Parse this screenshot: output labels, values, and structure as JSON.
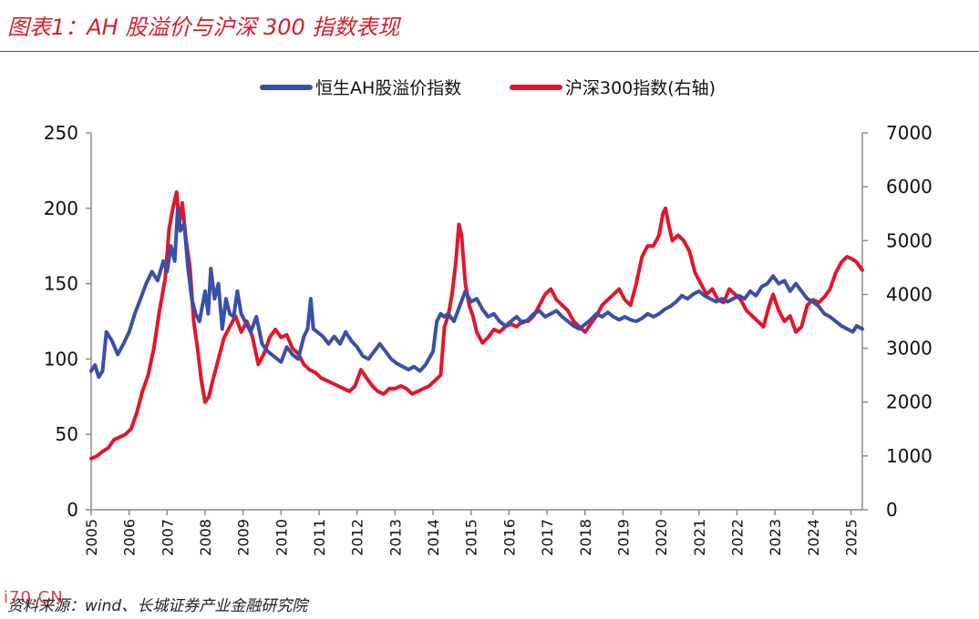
{
  "header": {
    "title": "图表1：AH 股溢价与沪深 300 指数表现"
  },
  "footer": {
    "source": "资料来源：wind、长城证券产业金融研究院",
    "watermark": "i70.CN"
  },
  "colors": {
    "accent": "#d21f2b",
    "series_ah": "#3a4fa8",
    "series_hs300": "#e3152a",
    "axis": "#8c8c8c"
  },
  "chart_data": {
    "type": "line",
    "title": "AH 股溢价与沪深 300 指数表现",
    "x_range": [
      2005.0,
      2025.3
    ],
    "x_ticks": [
      "2005",
      "2006",
      "2007",
      "2008",
      "2009",
      "2010",
      "2011",
      "2012",
      "2013",
      "2014",
      "2015",
      "2016",
      "2017",
      "2018",
      "2019",
      "2020",
      "2021",
      "2022",
      "2023",
      "2024",
      "2025"
    ],
    "y_left": {
      "range": [
        0,
        250
      ],
      "ticks": [
        "0",
        "50",
        "100",
        "150",
        "200",
        "250"
      ]
    },
    "y_right": {
      "range": [
        0,
        7000
      ],
      "ticks": [
        "0",
        "1000",
        "2000",
        "3000",
        "4000",
        "5000",
        "6000",
        "7000"
      ]
    },
    "grid": false,
    "legend_position": "top-center",
    "series": [
      {
        "name": "恒生AH股溢价指数",
        "axis": "left",
        "points": [
          [
            2005.0,
            92
          ],
          [
            2005.1,
            96
          ],
          [
            2005.2,
            88
          ],
          [
            2005.3,
            92
          ],
          [
            2005.4,
            118
          ],
          [
            2005.55,
            112
          ],
          [
            2005.7,
            103
          ],
          [
            2005.85,
            110
          ],
          [
            2006.0,
            118
          ],
          [
            2006.15,
            130
          ],
          [
            2006.3,
            140
          ],
          [
            2006.45,
            150
          ],
          [
            2006.6,
            158
          ],
          [
            2006.75,
            152
          ],
          [
            2006.9,
            165
          ],
          [
            2007.0,
            158
          ],
          [
            2007.1,
            175
          ],
          [
            2007.2,
            165
          ],
          [
            2007.28,
            200
          ],
          [
            2007.35,
            185
          ],
          [
            2007.45,
            190
          ],
          [
            2007.55,
            160
          ],
          [
            2007.65,
            140
          ],
          [
            2007.75,
            130
          ],
          [
            2007.85,
            125
          ],
          [
            2008.0,
            145
          ],
          [
            2008.08,
            130
          ],
          [
            2008.15,
            160
          ],
          [
            2008.25,
            140
          ],
          [
            2008.35,
            150
          ],
          [
            2008.45,
            120
          ],
          [
            2008.55,
            140
          ],
          [
            2008.65,
            130
          ],
          [
            2008.75,
            128
          ],
          [
            2008.85,
            145
          ],
          [
            2008.95,
            130
          ],
          [
            2009.05,
            125
          ],
          [
            2009.2,
            118
          ],
          [
            2009.35,
            128
          ],
          [
            2009.5,
            110
          ],
          [
            2009.65,
            105
          ],
          [
            2009.8,
            102
          ],
          [
            2010.0,
            98
          ],
          [
            2010.15,
            108
          ],
          [
            2010.3,
            103
          ],
          [
            2010.45,
            100
          ],
          [
            2010.6,
            115
          ],
          [
            2010.7,
            120
          ],
          [
            2010.78,
            140
          ],
          [
            2010.85,
            120
          ],
          [
            2010.95,
            118
          ],
          [
            2011.1,
            115
          ],
          [
            2011.25,
            110
          ],
          [
            2011.4,
            115
          ],
          [
            2011.55,
            110
          ],
          [
            2011.7,
            118
          ],
          [
            2011.85,
            112
          ],
          [
            2012.0,
            108
          ],
          [
            2012.15,
            102
          ],
          [
            2012.3,
            100
          ],
          [
            2012.45,
            105
          ],
          [
            2012.6,
            110
          ],
          [
            2012.75,
            105
          ],
          [
            2012.9,
            100
          ],
          [
            2013.05,
            97
          ],
          [
            2013.2,
            95
          ],
          [
            2013.35,
            93
          ],
          [
            2013.5,
            95
          ],
          [
            2013.65,
            92
          ],
          [
            2013.8,
            96
          ],
          [
            2014.0,
            105
          ],
          [
            2014.1,
            125
          ],
          [
            2014.2,
            130
          ],
          [
            2014.3,
            128
          ],
          [
            2014.4,
            130
          ],
          [
            2014.55,
            125
          ],
          [
            2014.7,
            135
          ],
          [
            2014.85,
            145
          ],
          [
            2015.0,
            138
          ],
          [
            2015.15,
            140
          ],
          [
            2015.3,
            133
          ],
          [
            2015.45,
            128
          ],
          [
            2015.6,
            130
          ],
          [
            2015.75,
            125
          ],
          [
            2015.9,
            122
          ],
          [
            2016.05,
            125
          ],
          [
            2016.2,
            128
          ],
          [
            2016.35,
            124
          ],
          [
            2016.5,
            126
          ],
          [
            2016.65,
            130
          ],
          [
            2016.8,
            132
          ],
          [
            2016.95,
            128
          ],
          [
            2017.1,
            130
          ],
          [
            2017.25,
            132
          ],
          [
            2017.4,
            128
          ],
          [
            2017.55,
            125
          ],
          [
            2017.7,
            122
          ],
          [
            2017.85,
            120
          ],
          [
            2018.0,
            123
          ],
          [
            2018.15,
            126
          ],
          [
            2018.3,
            130
          ],
          [
            2018.45,
            128
          ],
          [
            2018.6,
            131
          ],
          [
            2018.75,
            128
          ],
          [
            2018.9,
            126
          ],
          [
            2019.05,
            128
          ],
          [
            2019.2,
            126
          ],
          [
            2019.35,
            125
          ],
          [
            2019.5,
            127
          ],
          [
            2019.65,
            130
          ],
          [
            2019.8,
            128
          ],
          [
            2019.95,
            130
          ],
          [
            2020.1,
            133
          ],
          [
            2020.25,
            135
          ],
          [
            2020.4,
            138
          ],
          [
            2020.55,
            142
          ],
          [
            2020.7,
            140
          ],
          [
            2020.85,
            143
          ],
          [
            2021.0,
            145
          ],
          [
            2021.15,
            142
          ],
          [
            2021.3,
            140
          ],
          [
            2021.45,
            138
          ],
          [
            2021.6,
            140
          ],
          [
            2021.75,
            138
          ],
          [
            2021.9,
            140
          ],
          [
            2022.05,
            142
          ],
          [
            2022.2,
            140
          ],
          [
            2022.35,
            145
          ],
          [
            2022.5,
            142
          ],
          [
            2022.65,
            148
          ],
          [
            2022.8,
            150
          ],
          [
            2022.95,
            155
          ],
          [
            2023.1,
            150
          ],
          [
            2023.25,
            152
          ],
          [
            2023.4,
            145
          ],
          [
            2023.55,
            150
          ],
          [
            2023.7,
            145
          ],
          [
            2023.85,
            140
          ],
          [
            2024.0,
            138
          ],
          [
            2024.15,
            135
          ],
          [
            2024.3,
            130
          ],
          [
            2024.45,
            128
          ],
          [
            2024.6,
            125
          ],
          [
            2024.75,
            122
          ],
          [
            2024.9,
            120
          ],
          [
            2025.05,
            118
          ],
          [
            2025.15,
            122
          ],
          [
            2025.3,
            120
          ]
        ]
      },
      {
        "name": "沪深300指数(右轴)",
        "axis": "right",
        "points": [
          [
            2005.0,
            950
          ],
          [
            2005.15,
            1000
          ],
          [
            2005.3,
            1080
          ],
          [
            2005.45,
            1150
          ],
          [
            2005.6,
            1300
          ],
          [
            2005.75,
            1350
          ],
          [
            2005.9,
            1400
          ],
          [
            2006.05,
            1500
          ],
          [
            2006.2,
            1800
          ],
          [
            2006.35,
            2200
          ],
          [
            2006.5,
            2500
          ],
          [
            2006.65,
            3000
          ],
          [
            2006.8,
            3700
          ],
          [
            2006.95,
            4300
          ],
          [
            2007.05,
            5200
          ],
          [
            2007.15,
            5600
          ],
          [
            2007.25,
            5900
          ],
          [
            2007.32,
            5300
          ],
          [
            2007.4,
            5700
          ],
          [
            2007.5,
            5000
          ],
          [
            2007.6,
            4500
          ],
          [
            2007.7,
            3500
          ],
          [
            2007.8,
            3000
          ],
          [
            2007.9,
            2400
          ],
          [
            2008.0,
            2000
          ],
          [
            2008.1,
            2100
          ],
          [
            2008.2,
            2400
          ],
          [
            2008.35,
            2800
          ],
          [
            2008.5,
            3200
          ],
          [
            2008.65,
            3400
          ],
          [
            2008.8,
            3600
          ],
          [
            2008.95,
            3300
          ],
          [
            2009.1,
            3500
          ],
          [
            2009.25,
            3200
          ],
          [
            2009.4,
            2700
          ],
          [
            2009.55,
            2900
          ],
          [
            2009.7,
            3200
          ],
          [
            2009.85,
            3350
          ],
          [
            2010.0,
            3200
          ],
          [
            2010.15,
            3250
          ],
          [
            2010.3,
            3000
          ],
          [
            2010.45,
            2900
          ],
          [
            2010.6,
            2700
          ],
          [
            2010.75,
            2600
          ],
          [
            2010.9,
            2550
          ],
          [
            2011.05,
            2450
          ],
          [
            2011.2,
            2400
          ],
          [
            2011.35,
            2350
          ],
          [
            2011.5,
            2300
          ],
          [
            2011.65,
            2250
          ],
          [
            2011.8,
            2200
          ],
          [
            2011.95,
            2300
          ],
          [
            2012.1,
            2600
          ],
          [
            2012.25,
            2450
          ],
          [
            2012.4,
            2300
          ],
          [
            2012.55,
            2200
          ],
          [
            2012.7,
            2150
          ],
          [
            2012.85,
            2250
          ],
          [
            2013.0,
            2250
          ],
          [
            2013.15,
            2300
          ],
          [
            2013.3,
            2250
          ],
          [
            2013.45,
            2150
          ],
          [
            2013.6,
            2200
          ],
          [
            2013.75,
            2250
          ],
          [
            2013.9,
            2300
          ],
          [
            2014.05,
            2400
          ],
          [
            2014.2,
            2500
          ],
          [
            2014.3,
            3400
          ],
          [
            2014.4,
            3600
          ],
          [
            2014.5,
            4000
          ],
          [
            2014.6,
            4600
          ],
          [
            2014.68,
            5300
          ],
          [
            2014.75,
            5100
          ],
          [
            2014.85,
            4200
          ],
          [
            2014.95,
            3800
          ],
          [
            2015.05,
            3600
          ],
          [
            2015.15,
            3300
          ],
          [
            2015.3,
            3100
          ],
          [
            2015.45,
            3200
          ],
          [
            2015.6,
            3350
          ],
          [
            2015.75,
            3300
          ],
          [
            2015.9,
            3400
          ],
          [
            2016.05,
            3450
          ],
          [
            2016.2,
            3400
          ],
          [
            2016.35,
            3500
          ],
          [
            2016.5,
            3500
          ],
          [
            2016.65,
            3600
          ],
          [
            2016.8,
            3800
          ],
          [
            2016.95,
            4000
          ],
          [
            2017.1,
            4100
          ],
          [
            2017.25,
            3900
          ],
          [
            2017.4,
            3800
          ],
          [
            2017.55,
            3700
          ],
          [
            2017.7,
            3500
          ],
          [
            2017.85,
            3400
          ],
          [
            2018.0,
            3300
          ],
          [
            2018.15,
            3450
          ],
          [
            2018.3,
            3600
          ],
          [
            2018.45,
            3800
          ],
          [
            2018.6,
            3900
          ],
          [
            2018.75,
            4000
          ],
          [
            2018.9,
            4100
          ],
          [
            2019.05,
            3900
          ],
          [
            2019.2,
            3800
          ],
          [
            2019.35,
            4200
          ],
          [
            2019.5,
            4700
          ],
          [
            2019.65,
            4900
          ],
          [
            2019.8,
            4900
          ],
          [
            2019.95,
            5100
          ],
          [
            2020.05,
            5500
          ],
          [
            2020.12,
            5600
          ],
          [
            2020.2,
            5300
          ],
          [
            2020.3,
            5000
          ],
          [
            2020.45,
            5100
          ],
          [
            2020.6,
            5000
          ],
          [
            2020.75,
            4800
          ],
          [
            2020.9,
            4400
          ],
          [
            2021.05,
            4200
          ],
          [
            2021.2,
            4000
          ],
          [
            2021.35,
            4100
          ],
          [
            2021.5,
            3900
          ],
          [
            2021.65,
            3850
          ],
          [
            2021.8,
            4100
          ],
          [
            2021.95,
            4000
          ],
          [
            2022.1,
            3900
          ],
          [
            2022.25,
            3700
          ],
          [
            2022.4,
            3600
          ],
          [
            2022.55,
            3500
          ],
          [
            2022.7,
            3400
          ],
          [
            2022.85,
            3800
          ],
          [
            2022.95,
            4000
          ],
          [
            2023.1,
            3700
          ],
          [
            2023.25,
            3500
          ],
          [
            2023.4,
            3600
          ],
          [
            2023.55,
            3300
          ],
          [
            2023.7,
            3400
          ],
          [
            2023.85,
            3800
          ],
          [
            2024.0,
            3900
          ],
          [
            2024.15,
            3850
          ],
          [
            2024.3,
            3950
          ],
          [
            2024.45,
            4100
          ],
          [
            2024.6,
            4400
          ],
          [
            2024.75,
            4600
          ],
          [
            2024.9,
            4700
          ],
          [
            2025.05,
            4650
          ],
          [
            2025.15,
            4600
          ],
          [
            2025.25,
            4500
          ],
          [
            2025.3,
            4450
          ]
        ]
      }
    ]
  }
}
